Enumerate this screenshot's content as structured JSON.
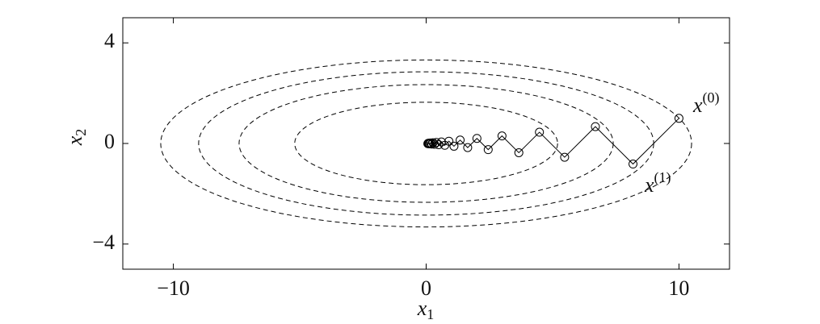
{
  "chart_data": {
    "type": "line",
    "x_label": {
      "base": "x",
      "sub": "1"
    },
    "y_label": {
      "base": "x",
      "sub": "2"
    },
    "annotations": [
      {
        "base": "x",
        "sup": "(0)"
      },
      {
        "base": "x",
        "sup": "(1)"
      }
    ],
    "x": [
      10,
      8.1818,
      6.6942,
      5.4771,
      4.4812,
      3.6665,
      2.9998,
      2.4544,
      2.0082,
      1.6431,
      1.3443,
      1.0999,
      0.8999,
      0.7363,
      0.6024,
      0.4929,
      0.4033,
      0.33,
      0.27,
      0.2209,
      0.1807,
      0.1479,
      0.121,
      0.099,
      0.081,
      0.0663
    ],
    "series": [
      {
        "color": "#000000",
        "values": [
          1,
          -0.81818,
          0.66942,
          -0.54771,
          0.44812,
          -0.36665,
          0.29998,
          -0.24544,
          0.20082,
          -0.16431,
          0.13443,
          -0.10999,
          0.08999,
          -0.07363,
          0.06024,
          -0.04929,
          0.04033,
          -0.033,
          0.027,
          -0.02209,
          0.01807,
          -0.01479,
          0.0121,
          -0.0099,
          0.0081,
          -0.00663
        ]
      }
    ],
    "contours": [
      {
        "a": 5.2,
        "b": 1.64
      },
      {
        "a": 7.4,
        "b": 2.34
      },
      {
        "a": 9.0,
        "b": 2.85
      },
      {
        "a": 10.5,
        "b": 3.32
      }
    ],
    "xlim": [
      -12,
      12
    ],
    "ylim": [
      -5,
      5
    ],
    "xticks": [
      {
        "value": -10,
        "label": "−10"
      },
      0,
      10
    ],
    "yticks": [
      {
        "value": -4,
        "label": "−4"
      },
      0,
      4
    ]
  }
}
